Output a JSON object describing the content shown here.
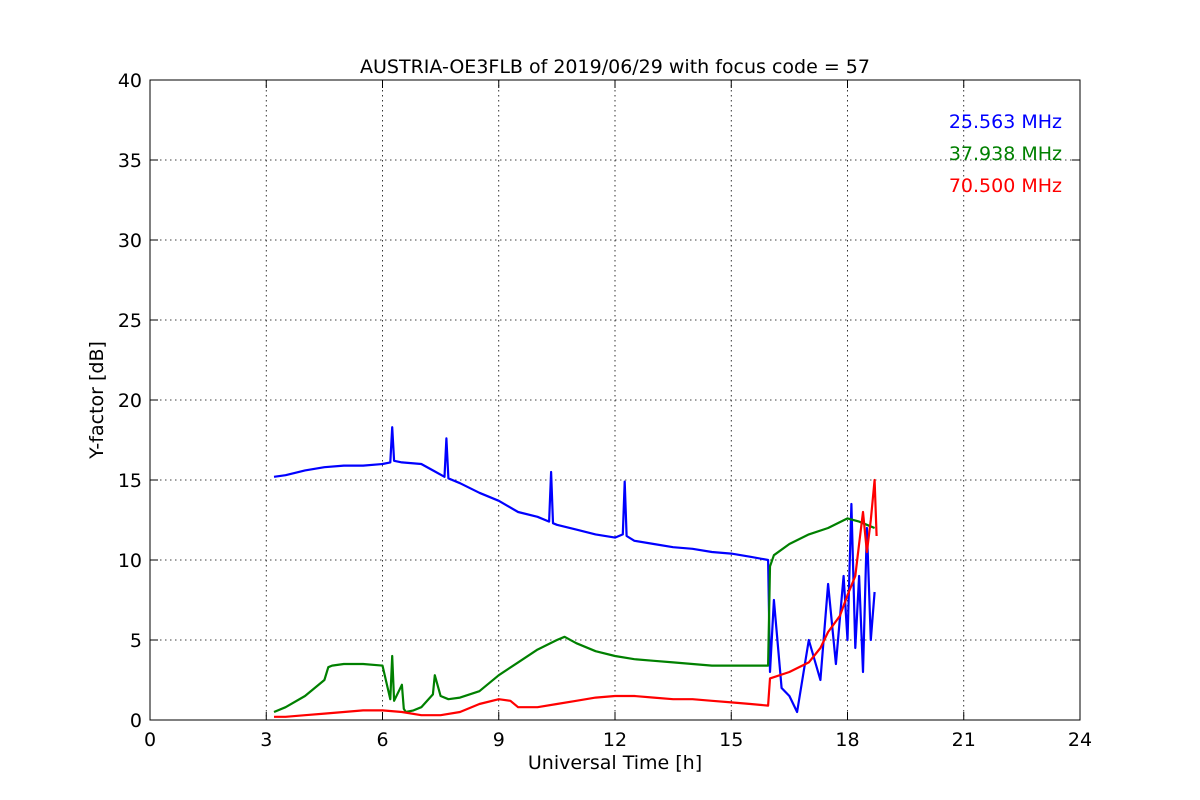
{
  "chart_data": {
    "type": "line",
    "title": "AUSTRIA-OE3FLB of 2019/06/29 with focus code = 57",
    "xlabel": "Universal Time [h]",
    "ylabel": "Y-factor [dB]",
    "xlim": [
      0,
      24
    ],
    "ylim": [
      0,
      40
    ],
    "xticks": [
      0,
      3,
      6,
      9,
      12,
      15,
      18,
      21,
      24
    ],
    "yticks": [
      0,
      5,
      10,
      15,
      20,
      25,
      30,
      35,
      40
    ],
    "xtick_labels": [
      "0",
      "3",
      "6",
      "9",
      "12",
      "15",
      "18",
      "21",
      "24"
    ],
    "ytick_labels": [
      "0",
      "5",
      "10",
      "15",
      "20",
      "25",
      "30",
      "35",
      "40"
    ],
    "grid": true,
    "legend_placement": "top-right",
    "series": [
      {
        "name": "25.563 MHz",
        "color": "#0000ff",
        "x": [
          3.2,
          3.5,
          4.0,
          4.5,
          5.0,
          5.5,
          6.0,
          6.2,
          6.25,
          6.3,
          6.5,
          7.0,
          7.3,
          7.6,
          7.65,
          7.7,
          8.0,
          8.5,
          9.0,
          9.5,
          10.0,
          10.3,
          10.35,
          10.4,
          10.5,
          11.0,
          11.5,
          12.0,
          12.2,
          12.25,
          12.3,
          12.5,
          13.0,
          13.5,
          14.0,
          14.5,
          15.0,
          15.5,
          15.95,
          16.0,
          16.1,
          16.3,
          16.5,
          16.7,
          17.0,
          17.3,
          17.5,
          17.7,
          17.9,
          18.0,
          18.1,
          18.2,
          18.3,
          18.4,
          18.5,
          18.6,
          18.7
        ],
        "values": [
          15.2,
          15.3,
          15.6,
          15.8,
          15.9,
          15.9,
          16.0,
          16.1,
          18.3,
          16.2,
          16.1,
          16.0,
          15.6,
          15.2,
          17.6,
          15.1,
          14.8,
          14.2,
          13.7,
          13.0,
          12.7,
          12.4,
          15.5,
          12.3,
          12.2,
          11.9,
          11.6,
          11.4,
          11.6,
          14.9,
          11.5,
          11.2,
          11.0,
          10.8,
          10.7,
          10.5,
          10.4,
          10.2,
          10.0,
          3.0,
          7.5,
          2.0,
          1.5,
          0.5,
          5.0,
          2.5,
          8.5,
          3.5,
          9.0,
          5.0,
          13.5,
          4.5,
          9.0,
          3.0,
          12.0,
          5.0,
          8.0
        ]
      },
      {
        "name": "37.938 MHz",
        "color": "#008000",
        "x": [
          3.2,
          3.5,
          4.0,
          4.5,
          4.6,
          4.7,
          5.0,
          5.5,
          6.0,
          6.2,
          6.25,
          6.3,
          6.5,
          6.55,
          6.6,
          6.8,
          7.0,
          7.3,
          7.35,
          7.5,
          7.7,
          8.0,
          8.5,
          9.0,
          9.5,
          10.0,
          10.5,
          10.7,
          11.0,
          11.5,
          12.0,
          12.5,
          13.0,
          13.5,
          14.0,
          14.5,
          15.0,
          15.5,
          15.95,
          16.0,
          16.1,
          16.5,
          17.0,
          17.5,
          18.0,
          18.3,
          18.5,
          18.7
        ],
        "values": [
          0.5,
          0.8,
          1.5,
          2.5,
          3.3,
          3.4,
          3.5,
          3.5,
          3.4,
          1.3,
          4.0,
          1.2,
          2.2,
          0.7,
          0.5,
          0.6,
          0.8,
          1.6,
          2.8,
          1.5,
          1.3,
          1.4,
          1.8,
          2.8,
          3.6,
          4.4,
          5.0,
          5.2,
          4.8,
          4.3,
          4.0,
          3.8,
          3.7,
          3.6,
          3.5,
          3.4,
          3.4,
          3.4,
          3.4,
          9.6,
          10.3,
          11.0,
          11.6,
          12.0,
          12.6,
          12.4,
          12.2,
          12.0
        ]
      },
      {
        "name": "70.500 MHz",
        "color": "#ff0000",
        "x": [
          3.2,
          3.5,
          4.0,
          4.5,
          5.0,
          5.5,
          6.0,
          6.5,
          7.0,
          7.5,
          8.0,
          8.5,
          9.0,
          9.3,
          9.5,
          10.0,
          10.5,
          11.0,
          11.5,
          12.0,
          12.5,
          13.0,
          13.5,
          14.0,
          14.5,
          15.0,
          15.5,
          15.95,
          16.0,
          16.5,
          17.0,
          17.3,
          17.5,
          17.8,
          18.0,
          18.2,
          18.3,
          18.4,
          18.5,
          18.6,
          18.7,
          18.75
        ],
        "values": [
          0.2,
          0.2,
          0.3,
          0.4,
          0.5,
          0.6,
          0.6,
          0.5,
          0.3,
          0.3,
          0.5,
          1.0,
          1.3,
          1.2,
          0.8,
          0.8,
          1.0,
          1.2,
          1.4,
          1.5,
          1.5,
          1.4,
          1.3,
          1.3,
          1.2,
          1.1,
          1.0,
          0.9,
          2.6,
          3.0,
          3.6,
          4.5,
          5.5,
          6.5,
          7.8,
          9.0,
          11.0,
          13.0,
          10.5,
          12.5,
          15.0,
          11.5
        ]
      }
    ]
  }
}
